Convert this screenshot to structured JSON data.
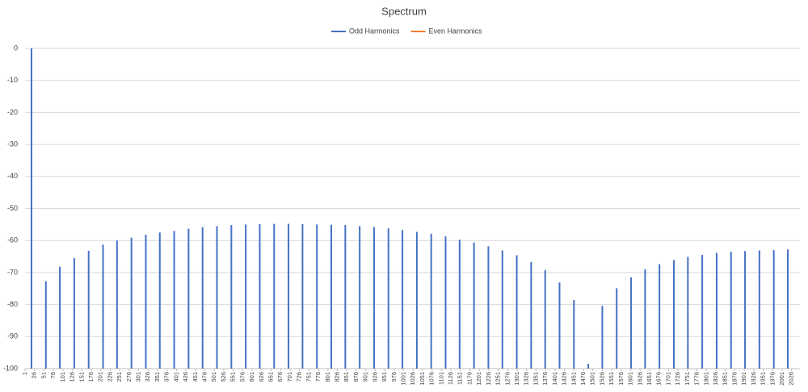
{
  "chart_data": {
    "type": "bar",
    "title": "Spectrum",
    "xlim": [
      1,
      2048
    ],
    "xticks": [
      1,
      26,
      51,
      76,
      101,
      126,
      151,
      176,
      201,
      226,
      251,
      276,
      301,
      326,
      351,
      376,
      401,
      426,
      451,
      476,
      501,
      526,
      551,
      576,
      601,
      626,
      651,
      676,
      701,
      726,
      751,
      776,
      801,
      826,
      851,
      876,
      901,
      926,
      951,
      976,
      1001,
      1026,
      1051,
      1076,
      1101,
      1126,
      1151,
      1176,
      1201,
      1226,
      1251,
      1276,
      1301,
      1326,
      1351,
      1376,
      1401,
      1426,
      1451,
      1476,
      1501,
      1526,
      1551,
      1576,
      1601,
      1626,
      1651,
      1676,
      1701,
      1726,
      1751,
      1776,
      1801,
      1826,
      1851,
      1876,
      1901,
      1926,
      1951,
      1976,
      2001,
      2026
    ],
    "ylim": [
      -100,
      0
    ],
    "yticks": [
      0,
      -10,
      -20,
      -30,
      -40,
      -50,
      -60,
      -70,
      -80,
      -90,
      -100
    ],
    "grid": true,
    "legend": "top",
    "series": [
      {
        "name": "Odd Harmonics",
        "color": "#4472c4",
        "x": [
          18,
          56,
          93,
          131,
          169,
          207,
          244,
          282,
          320,
          357,
          395,
          433,
          470,
          508,
          546,
          584,
          621,
          659,
          697,
          734,
          772,
          810,
          847,
          885,
          923,
          961,
          998,
          1036,
          1074,
          1112,
          1149,
          1187,
          1225,
          1262,
          1300,
          1338,
          1375,
          1413,
          1451,
          1489,
          1526,
          1564,
          1602,
          1639,
          1677,
          1715,
          1752,
          1790,
          1828,
          1866,
          1903,
          1941,
          1979,
          2016
        ],
        "values": [
          0,
          -72.7,
          -68.2,
          -65.5,
          -63.2,
          -61.3,
          -60.0,
          -59.1,
          -58.2,
          -57.5,
          -57.0,
          -56.3,
          -55.8,
          -55.5,
          -55.2,
          -55.0,
          -54.9,
          -54.8,
          -54.8,
          -54.9,
          -55.0,
          -55.1,
          -55.2,
          -55.5,
          -55.8,
          -56.2,
          -56.7,
          -57.3,
          -57.9,
          -58.7,
          -59.7,
          -60.6,
          -61.8,
          -63.1,
          -64.6,
          -66.7,
          -69.2,
          -73.1,
          -78.6,
          -98.5,
          -80.4,
          -74.9,
          -71.5,
          -69.0,
          -67.4,
          -66.1,
          -65.1,
          -64.5,
          -63.9,
          -63.5,
          -63.3,
          -63.1,
          -63.0,
          -62.8
        ]
      },
      {
        "name": "Even Harmonics",
        "color": "#ed7d31",
        "x": [],
        "values": []
      }
    ]
  }
}
